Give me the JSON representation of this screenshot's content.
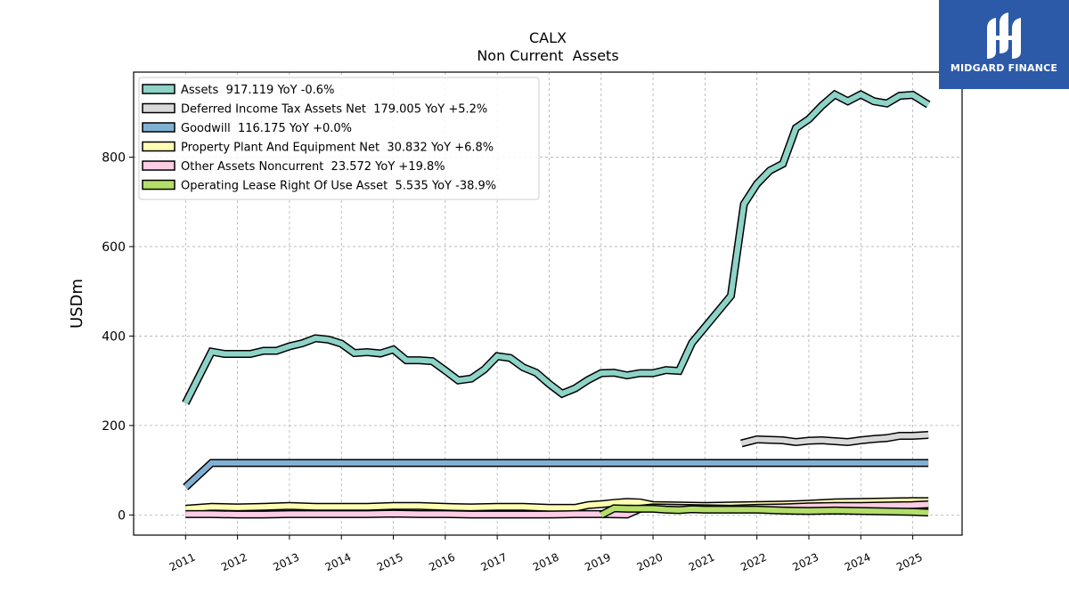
{
  "logo": {
    "text": "MIDGARD FINANCE",
    "icon": "midgard-m-logo-icon",
    "background": "#2c5aa8"
  },
  "chart_data": {
    "type": "line",
    "title": "CALX",
    "subtitle": "Non Current  Assets",
    "ylabel": "USDm",
    "xlabel": "",
    "ylim": [
      -45,
      990
    ],
    "xlim": [
      2010.0,
      2025.95
    ],
    "yticks": [
      0,
      200,
      400,
      600,
      800
    ],
    "xticks": [
      "2011",
      "2012",
      "2013",
      "2014",
      "2015",
      "2016",
      "2017",
      "2018",
      "2019",
      "2020",
      "2021",
      "2022",
      "2023",
      "2024",
      "2025"
    ],
    "grid": true,
    "legend_position": "top-left",
    "series": [
      {
        "name": "Assets",
        "legend": "Assets  917.119 YoY -0.6%",
        "color": "#8dd3c7",
        "x": [
          2011.0,
          2011.5,
          2011.75,
          2012.0,
          2012.25,
          2012.5,
          2012.75,
          2013.0,
          2013.25,
          2013.5,
          2013.75,
          2014.0,
          2014.25,
          2014.5,
          2014.75,
          2015.0,
          2015.25,
          2015.5,
          2015.75,
          2016.0,
          2016.25,
          2016.5,
          2016.75,
          2017.0,
          2017.25,
          2017.5,
          2017.75,
          2018.0,
          2018.25,
          2018.5,
          2018.75,
          2019.0,
          2019.25,
          2019.5,
          2019.75,
          2020.0,
          2020.25,
          2020.5,
          2020.75,
          2021.0,
          2021.25,
          2021.5,
          2021.75,
          2022.0,
          2022.25,
          2022.5,
          2022.75,
          2023.0,
          2023.25,
          2023.5,
          2023.75,
          2024.0,
          2024.25,
          2024.5,
          2024.75,
          2025.0,
          2025.3
        ],
        "values": [
          250,
          365,
          360,
          360,
          360,
          367,
          367,
          377,
          384,
          395,
          392,
          383,
          362,
          364,
          361,
          370,
          346,
          346,
          344,
          323,
          301,
          305,
          325,
          355,
          351,
          330,
          318,
          293,
          271,
          283,
          302,
          317,
          318,
          312,
          317,
          317,
          324,
          322,
          385,
          420,
          455,
          490,
          695,
          740,
          770,
          785,
          865,
          885,
          915,
          940,
          925,
          940,
          925,
          920,
          937,
          939,
          917.119
        ]
      },
      {
        "name": "Deferred Income Tax Assets Net",
        "legend": "Deferred Income Tax Assets Net  179.005 YoY +5.2%",
        "color": "#d9d9d9",
        "x": [
          2021.7,
          2022.0,
          2022.25,
          2022.5,
          2022.75,
          2023.0,
          2023.25,
          2023.5,
          2023.75,
          2024.0,
          2024.25,
          2024.5,
          2024.75,
          2025.0,
          2025.3
        ],
        "values": [
          160,
          169,
          168,
          167,
          163,
          166,
          167,
          165,
          163,
          167,
          170,
          172,
          177,
          177,
          179.005
        ]
      },
      {
        "name": "Goodwill",
        "legend": "Goodwill  116.175 YoY +0.0%",
        "color": "#80b1d3",
        "x": [
          2011.0,
          2011.5,
          2025.3
        ],
        "values": [
          62,
          116.175,
          116.175
        ]
      },
      {
        "name": "Property Plant And Equipment Net",
        "legend": "Property Plant And Equipment Net  30.832 YoY +6.8%",
        "color": "#ffffb3",
        "x": [
          2011.0,
          2011.5,
          2012.0,
          2012.5,
          2013.0,
          2013.5,
          2014.0,
          2014.5,
          2015.0,
          2015.5,
          2016.0,
          2016.5,
          2017.0,
          2017.5,
          2018.0,
          2018.5,
          2018.75,
          2019.0,
          2019.25,
          2019.5,
          2019.75,
          2020.0,
          2020.5,
          2021.0,
          2021.5,
          2022.0,
          2022.5,
          2023.0,
          2023.5,
          2024.0,
          2024.5,
          2025.0,
          2025.3
        ],
        "values": [
          14,
          18,
          17,
          18,
          20,
          18,
          18,
          18,
          20,
          20,
          18,
          17,
          18,
          18,
          16,
          16,
          22,
          24,
          27,
          29,
          28,
          22,
          21,
          20,
          21,
          22,
          23,
          25,
          28,
          29,
          30,
          31,
          30.832
        ]
      },
      {
        "name": "Other Assets Noncurrent",
        "legend": "Other Assets Noncurrent  23.572 YoY +19.8%",
        "color": "#fccde5",
        "x": [
          2011.0,
          2011.5,
          2012.0,
          2012.5,
          2013.0,
          2013.5,
          2014.0,
          2014.5,
          2015.0,
          2015.5,
          2016.0,
          2016.5,
          2017.0,
          2017.5,
          2018.0,
          2018.5,
          2019.0,
          2019.5,
          2019.75,
          2020.0,
          2020.5,
          2021.0,
          2021.5,
          2022.0,
          2022.5,
          2023.0,
          2023.5,
          2024.0,
          2024.5,
          2025.0,
          2025.3
        ],
        "values": [
          2,
          2,
          1,
          1,
          2,
          2,
          2,
          2,
          3,
          2,
          2,
          1,
          1,
          1,
          1,
          2,
          2,
          1,
          14,
          17,
          16,
          15,
          14,
          16,
          17,
          19,
          20,
          20,
          21,
          22,
          23.572
        ]
      },
      {
        "name": "Operating Lease Right Of Use Asset",
        "legend": "Operating Lease Right Of Use Asset  5.535 YoY -38.9%",
        "color": "#b3de69",
        "x": [
          2019.0,
          2019.25,
          2019.5,
          2019.75,
          2020.0,
          2020.25,
          2020.5,
          2020.75,
          2021.0,
          2021.5,
          2022.0,
          2022.5,
          2023.0,
          2023.5,
          2024.0,
          2024.5,
          2025.0,
          2025.3
        ],
        "values": [
          0,
          15,
          14,
          14,
          14,
          12,
          11,
          13,
          12,
          12,
          12,
          10,
          9,
          10,
          9,
          8,
          7,
          5.535
        ]
      }
    ]
  }
}
